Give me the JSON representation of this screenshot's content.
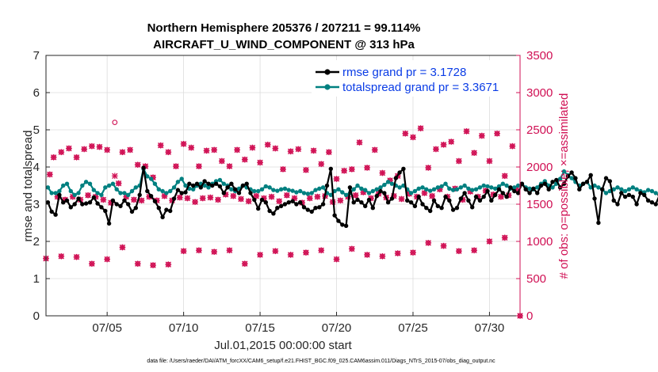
{
  "chart_data": {
    "type": "line",
    "title_line1": "Northern Hemisphere 205376 / 207211 = 99.114%",
    "title_line2": "AIRCRAFT_U_WIND_COMPONENT @ 313 hPa",
    "xlabel": "Jul.01,2015 00:00:00 start",
    "ylabel_left": "rmse and totalspread",
    "ylabel_right": "# of obs: o=possible; ×=assimilated",
    "footer": "data file: /Users/raeder/DAI/ATM_forcXX/CAM6_setup/f.e21.FHIST_BGC.f09_025.CAM6assim.011/Diags_NTrS_2015-07/obs_diag_output.nc",
    "xlim": [
      1,
      32
    ],
    "ylim_left": [
      0,
      7
    ],
    "ylim_right": [
      0,
      3500
    ],
    "x_ticks": [
      5,
      10,
      15,
      20,
      25,
      30
    ],
    "x_tick_labels": [
      "07/05",
      "07/10",
      "07/15",
      "07/20",
      "07/25",
      "07/30"
    ],
    "y_ticks_left": [
      0,
      1,
      2,
      3,
      4,
      5,
      6,
      7
    ],
    "y_tick_labels_left": [
      "0",
      "1",
      "2",
      "3",
      "4",
      "5",
      "6",
      "7"
    ],
    "y_ticks_right": [
      0,
      500,
      1000,
      1500,
      2000,
      2500,
      3000,
      3500
    ],
    "y_tick_labels_right": [
      "0",
      "500",
      "1000",
      "1500",
      "2000",
      "2500",
      "3000",
      "3500"
    ],
    "legend_entries": [
      "rmse grand pr = 3.1728",
      "totalspread grand pr = 3.3671"
    ],
    "legend_location": "top-right",
    "colors": {
      "rmse": "#000000",
      "totalspread": "#008080",
      "obs": "#d01054",
      "axis": "#262626",
      "legend_text": "#0a3ce6"
    },
    "series_x_start": 1.125,
    "series_x_step": 0.25,
    "series": [
      {
        "name": "rmse",
        "axis": "left",
        "values": [
          3.05,
          2.8,
          2.72,
          3.25,
          3.05,
          3.1,
          2.92,
          3.0,
          3.15,
          3.0,
          3.02,
          3.05,
          3.18,
          3.02,
          2.92,
          2.82,
          2.48,
          3.1,
          3.0,
          2.95,
          3.1,
          3.0,
          2.8,
          2.9,
          3.25,
          3.98,
          3.35,
          3.22,
          3.08,
          2.9,
          2.65,
          2.85,
          2.82,
          3.15,
          3.38,
          3.3,
          3.32,
          3.55,
          3.5,
          3.55,
          3.45,
          3.62,
          3.55,
          3.5,
          3.55,
          3.48,
          3.3,
          3.45,
          3.55,
          3.4,
          3.3,
          3.5,
          3.55,
          3.3,
          3.12,
          2.88,
          3.12,
          3.05,
          2.82,
          2.75,
          2.9,
          2.95,
          3.0,
          3.05,
          3.08,
          3.0,
          3.05,
          2.92,
          2.85,
          2.8,
          2.9,
          2.92,
          3.0,
          3.5,
          3.95,
          2.7,
          2.55,
          2.45,
          2.42,
          3.45,
          3.05,
          3.12,
          3.05,
          2.95,
          3.12,
          2.9,
          3.22,
          3.35,
          3.3,
          3.05,
          3.15,
          3.7,
          3.85,
          3.95,
          3.1,
          3.05,
          2.95,
          3.2,
          3.0,
          2.9,
          2.82,
          3.1,
          2.95,
          2.9,
          3.2,
          3.1,
          2.85,
          2.9,
          3.15,
          3.3,
          3.1,
          2.92,
          3.2,
          3.1,
          3.2,
          3.35,
          3.1,
          3.25,
          3.4,
          3.3,
          3.2,
          3.45,
          3.35,
          3.3,
          3.55,
          3.4,
          3.3,
          3.42,
          3.3,
          3.5,
          3.55,
          3.4,
          3.6,
          3.65,
          3.45,
          3.55,
          3.75,
          3.85,
          3.7,
          3.4,
          3.55,
          3.6,
          3.78,
          3.15,
          2.5,
          3.4,
          3.7,
          3.62,
          3.1,
          3.0,
          3.3,
          3.2,
          3.25,
          3.2,
          3.0,
          3.3,
          3.25,
          3.1,
          3.05,
          3.0,
          3.25,
          3.05
        ],
        "label": "rmse grand pr = 3.1728"
      },
      {
        "name": "totalspread",
        "axis": "left",
        "values": [
          3.45,
          3.3,
          3.3,
          3.35,
          3.5,
          3.55,
          3.35,
          3.25,
          3.3,
          3.5,
          3.6,
          3.55,
          3.38,
          3.3,
          3.25,
          3.45,
          3.5,
          3.55,
          3.4,
          3.3,
          3.3,
          3.25,
          3.35,
          3.45,
          3.5,
          3.95,
          3.75,
          3.68,
          3.55,
          3.4,
          3.35,
          3.3,
          3.35,
          3.45,
          3.6,
          3.68,
          3.5,
          3.42,
          3.4,
          3.5,
          3.55,
          3.5,
          3.45,
          3.55,
          3.62,
          3.65,
          3.55,
          3.5,
          3.4,
          3.35,
          3.42,
          3.5,
          3.45,
          3.4,
          3.35,
          3.35,
          3.4,
          3.48,
          3.45,
          3.38,
          3.36,
          3.4,
          3.42,
          3.38,
          3.36,
          3.32,
          3.35,
          3.3,
          3.28,
          3.3,
          3.38,
          3.42,
          3.45,
          3.3,
          3.25,
          3.35,
          3.4,
          3.32,
          3.25,
          3.3,
          3.4,
          3.5,
          3.42,
          3.38,
          3.3,
          3.35,
          3.4,
          3.45,
          3.52,
          3.6,
          3.55,
          3.5,
          3.45,
          3.5,
          3.4,
          3.3,
          3.35,
          3.42,
          3.45,
          3.4,
          3.36,
          3.4,
          3.45,
          3.48,
          3.55,
          3.42,
          3.38,
          3.4,
          3.45,
          3.5,
          3.42,
          3.38,
          3.4,
          3.45,
          3.5,
          3.48,
          3.45,
          3.42,
          3.48,
          3.55,
          3.5,
          3.42,
          3.45,
          3.5,
          3.55,
          3.45,
          3.42,
          3.4,
          3.45,
          3.55,
          3.62,
          3.5,
          3.45,
          3.55,
          3.68,
          3.88,
          3.78,
          3.7,
          3.6,
          3.5,
          3.55,
          3.6,
          3.45,
          3.5,
          3.45,
          3.4,
          3.3,
          3.35,
          3.4,
          3.45,
          3.4,
          3.35,
          3.4,
          3.45,
          3.4,
          3.35,
          3.32,
          3.38,
          3.35,
          3.3
        ],
        "label": "totalspread grand pr = 3.3671"
      }
    ],
    "obs_count_possible": [
      [
        1.25,
        1900
      ],
      [
        1.5,
        2130
      ],
      [
        1.75,
        1600
      ],
      [
        2.0,
        2200
      ],
      [
        2.25,
        1560
      ],
      [
        2.5,
        2250
      ],
      [
        2.75,
        1600
      ],
      [
        3.0,
        2130
      ],
      [
        3.25,
        1560
      ],
      [
        3.5,
        2240
      ],
      [
        3.75,
        1620
      ],
      [
        4.0,
        2280
      ],
      [
        4.25,
        1600
      ],
      [
        4.5,
        2270
      ],
      [
        4.75,
        1560
      ],
      [
        5.0,
        2230
      ],
      [
        5.25,
        1520
      ],
      [
        5.5,
        2600
      ],
      [
        5.75,
        1780
      ],
      [
        6.0,
        2200
      ],
      [
        6.25,
        1600
      ],
      [
        6.5,
        2230
      ],
      [
        6.75,
        1560
      ],
      [
        7.0,
        2030
      ],
      [
        7.25,
        1550
      ],
      [
        7.5,
        2010
      ],
      [
        7.75,
        1600
      ],
      [
        8.0,
        1860
      ],
      [
        8.25,
        1550
      ],
      [
        8.5,
        2290
      ],
      [
        8.75,
        1610
      ],
      [
        9.0,
        2200
      ],
      [
        9.25,
        1550
      ],
      [
        9.5,
        2010
      ],
      [
        9.75,
        1590
      ],
      [
        10.0,
        2310
      ],
      [
        10.25,
        1580
      ],
      [
        10.5,
        2260
      ],
      [
        10.75,
        1530
      ],
      [
        11.0,
        2010
      ],
      [
        11.25,
        1580
      ],
      [
        11.5,
        2220
      ],
      [
        11.75,
        1590
      ],
      [
        12.0,
        2230
      ],
      [
        12.25,
        1560
      ],
      [
        12.5,
        2080
      ],
      [
        12.75,
        1630
      ],
      [
        13.0,
        2010
      ],
      [
        13.25,
        1610
      ],
      [
        13.5,
        2230
      ],
      [
        13.75,
        1570
      ],
      [
        14.0,
        2100
      ],
      [
        14.25,
        1540
      ],
      [
        14.5,
        2260
      ],
      [
        14.75,
        1610
      ],
      [
        15.0,
        2060
      ],
      [
        15.25,
        1580
      ],
      [
        15.5,
        2300
      ],
      [
        15.75,
        1600
      ],
      [
        16.0,
        2250
      ],
      [
        16.25,
        1540
      ],
      [
        16.5,
        1970
      ],
      [
        16.75,
        1620
      ],
      [
        17.0,
        2210
      ],
      [
        17.25,
        1580
      ],
      [
        17.5,
        2240
      ],
      [
        17.75,
        1520
      ],
      [
        18.0,
        1960
      ],
      [
        18.25,
        1580
      ],
      [
        18.5,
        2220
      ],
      [
        18.75,
        1600
      ],
      [
        19.0,
        2040
      ],
      [
        19.25,
        1610
      ],
      [
        19.5,
        2200
      ],
      [
        19.75,
        1530
      ],
      [
        20.0,
        1840
      ],
      [
        20.25,
        1550
      ],
      [
        20.5,
        1950
      ],
      [
        20.75,
        1600
      ],
      [
        21.0,
        1970
      ],
      [
        21.25,
        1620
      ],
      [
        21.5,
        2330
      ],
      [
        21.75,
        1660
      ],
      [
        22.0,
        1990
      ],
      [
        22.25,
        1580
      ],
      [
        22.5,
        2230
      ],
      [
        22.75,
        1640
      ],
      [
        23.0,
        1920
      ],
      [
        23.25,
        1590
      ],
      [
        23.5,
        1820
      ],
      [
        23.75,
        1610
      ],
      [
        24.0,
        1880
      ],
      [
        24.25,
        1570
      ],
      [
        24.5,
        2450
      ],
      [
        24.75,
        1640
      ],
      [
        25.0,
        2400
      ],
      [
        25.25,
        1600
      ],
      [
        25.5,
        2520
      ],
      [
        25.75,
        1650
      ],
      [
        26.0,
        1990
      ],
      [
        26.25,
        1610
      ],
      [
        26.5,
        2240
      ],
      [
        26.75,
        1700
      ],
      [
        27.0,
        2300
      ],
      [
        27.25,
        1600
      ],
      [
        27.5,
        2340
      ],
      [
        27.75,
        1710
      ],
      [
        28.0,
        2080
      ],
      [
        28.25,
        1560
      ],
      [
        28.5,
        2480
      ],
      [
        28.75,
        1670
      ],
      [
        29.0,
        2190
      ],
      [
        29.25,
        1600
      ],
      [
        29.5,
        2420
      ],
      [
        29.75,
        1680
      ],
      [
        30.0,
        2080
      ],
      [
        30.25,
        1630
      ],
      [
        30.5,
        2450
      ],
      [
        30.75,
        1600
      ],
      [
        31.0,
        1880
      ],
      [
        31.25,
        1620
      ],
      [
        31.5,
        2280
      ],
      [
        31.75,
        1700
      ]
    ],
    "obs_count_assimilated": [
      [
        1.25,
        1900
      ],
      [
        1.5,
        2130
      ],
      [
        1.75,
        1600
      ],
      [
        2.0,
        2200
      ],
      [
        2.25,
        1560
      ],
      [
        2.5,
        2250
      ],
      [
        2.75,
        1600
      ],
      [
        3.0,
        2130
      ],
      [
        3.25,
        1560
      ],
      [
        3.5,
        2240
      ],
      [
        3.75,
        1620
      ],
      [
        4.0,
        2280
      ],
      [
        4.25,
        1600
      ],
      [
        4.5,
        2270
      ],
      [
        4.75,
        1560
      ],
      [
        5.0,
        2230
      ],
      [
        5.25,
        1520
      ],
      [
        5.5,
        1880
      ],
      [
        5.75,
        1780
      ],
      [
        6.0,
        2200
      ],
      [
        6.25,
        1600
      ],
      [
        6.5,
        2230
      ],
      [
        6.75,
        1560
      ],
      [
        7.0,
        2030
      ],
      [
        7.25,
        1550
      ],
      [
        7.5,
        2010
      ],
      [
        7.75,
        1600
      ],
      [
        8.0,
        1860
      ],
      [
        8.25,
        1550
      ],
      [
        8.5,
        2290
      ],
      [
        8.75,
        1610
      ],
      [
        9.0,
        2200
      ],
      [
        9.25,
        1550
      ],
      [
        9.5,
        2010
      ],
      [
        9.75,
        1590
      ],
      [
        10.0,
        2310
      ],
      [
        10.25,
        1580
      ],
      [
        10.5,
        2260
      ],
      [
        10.75,
        1530
      ],
      [
        11.0,
        2010
      ],
      [
        11.25,
        1580
      ],
      [
        11.5,
        2220
      ],
      [
        11.75,
        1590
      ],
      [
        12.0,
        2230
      ],
      [
        12.25,
        1560
      ],
      [
        12.5,
        2080
      ],
      [
        12.75,
        1630
      ],
      [
        13.0,
        2010
      ],
      [
        13.25,
        1610
      ],
      [
        13.5,
        2230
      ],
      [
        13.75,
        1570
      ],
      [
        14.0,
        2100
      ],
      [
        14.25,
        1540
      ],
      [
        14.5,
        2260
      ],
      [
        14.75,
        1610
      ],
      [
        15.0,
        2060
      ],
      [
        15.25,
        1580
      ],
      [
        15.5,
        2300
      ],
      [
        15.75,
        1600
      ],
      [
        16.0,
        2250
      ],
      [
        16.25,
        1540
      ],
      [
        16.5,
        1970
      ],
      [
        16.75,
        1620
      ],
      [
        17.0,
        2210
      ],
      [
        17.25,
        1580
      ],
      [
        17.5,
        2240
      ],
      [
        17.75,
        1520
      ],
      [
        18.0,
        1960
      ],
      [
        18.25,
        1580
      ],
      [
        18.5,
        2220
      ],
      [
        18.75,
        1600
      ],
      [
        19.0,
        2040
      ],
      [
        19.25,
        1610
      ],
      [
        19.5,
        2200
      ],
      [
        19.75,
        1530
      ],
      [
        20.0,
        1840
      ],
      [
        20.25,
        1550
      ],
      [
        20.5,
        1950
      ],
      [
        20.75,
        1600
      ],
      [
        21.0,
        1970
      ],
      [
        21.25,
        1620
      ],
      [
        21.5,
        2330
      ],
      [
        21.75,
        1660
      ],
      [
        22.0,
        1990
      ],
      [
        22.25,
        1580
      ],
      [
        22.5,
        2230
      ],
      [
        22.75,
        1640
      ],
      [
        23.0,
        1920
      ],
      [
        23.25,
        1590
      ],
      [
        23.5,
        1820
      ],
      [
        23.75,
        1610
      ],
      [
        24.0,
        1880
      ],
      [
        24.25,
        1570
      ],
      [
        24.5,
        2450
      ],
      [
        24.75,
        1640
      ],
      [
        25.0,
        2400
      ],
      [
        25.25,
        1600
      ],
      [
        25.5,
        2520
      ],
      [
        25.75,
        1650
      ],
      [
        26.0,
        1990
      ],
      [
        26.25,
        1610
      ],
      [
        26.5,
        2240
      ],
      [
        26.75,
        1700
      ],
      [
        27.0,
        2300
      ],
      [
        27.25,
        1600
      ],
      [
        27.5,
        2340
      ],
      [
        27.75,
        1710
      ],
      [
        28.0,
        2080
      ],
      [
        28.25,
        1560
      ],
      [
        28.5,
        2480
      ],
      [
        28.75,
        1670
      ],
      [
        29.0,
        2190
      ],
      [
        29.25,
        1600
      ],
      [
        29.5,
        2420
      ],
      [
        29.75,
        1680
      ],
      [
        30.0,
        2080
      ],
      [
        30.25,
        1630
      ],
      [
        30.5,
        2450
      ],
      [
        30.75,
        1600
      ],
      [
        31.0,
        1880
      ],
      [
        31.25,
        1620
      ],
      [
        31.5,
        2280
      ],
      [
        31.75,
        1700
      ]
    ],
    "obs_count_low": [
      [
        1.0,
        770
      ],
      [
        2.0,
        800
      ],
      [
        3.0,
        790
      ],
      [
        4.0,
        700
      ],
      [
        5.0,
        760
      ],
      [
        6.0,
        920
      ],
      [
        7.0,
        700
      ],
      [
        8.0,
        680
      ],
      [
        9.0,
        690
      ],
      [
        10.0,
        870
      ],
      [
        11.0,
        880
      ],
      [
        12.0,
        860
      ],
      [
        13.0,
        880
      ],
      [
        14.0,
        700
      ],
      [
        15.0,
        820
      ],
      [
        16.0,
        870
      ],
      [
        17.0,
        820
      ],
      [
        18.0,
        850
      ],
      [
        19.0,
        880
      ],
      [
        20.0,
        760
      ],
      [
        21.0,
        900
      ],
      [
        22.0,
        820
      ],
      [
        23.0,
        800
      ],
      [
        24.0,
        840
      ],
      [
        25.0,
        850
      ],
      [
        26.0,
        980
      ],
      [
        27.0,
        940
      ],
      [
        28.0,
        870
      ],
      [
        29.0,
        880
      ],
      [
        30.0,
        1000
      ],
      [
        31.0,
        1050
      ]
    ],
    "obs_count_zero": [
      [
        32,
        0
      ]
    ]
  }
}
